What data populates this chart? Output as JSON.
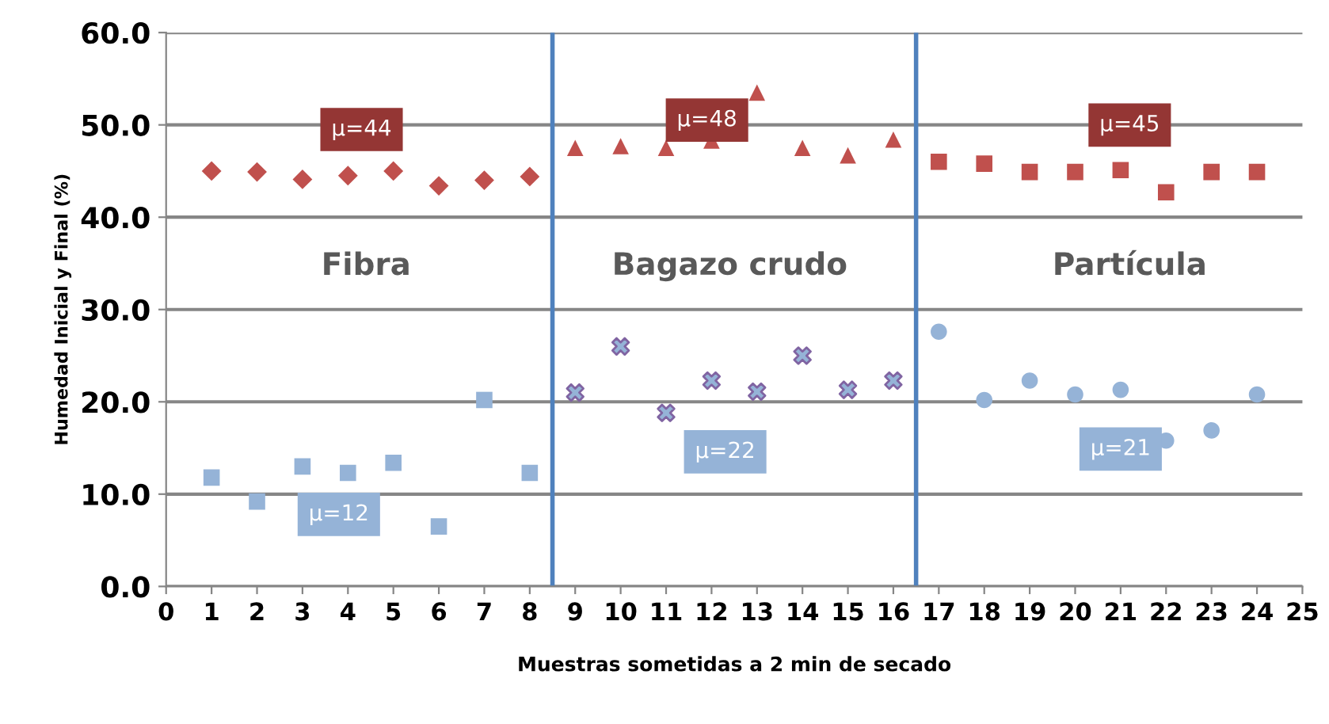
{
  "chart_data": {
    "type": "scatter",
    "xlabel": "Muestras sometidas a 2 min de secado",
    "ylabel": "Humedad Inicial y Final (%)",
    "xlim": [
      0,
      25
    ],
    "xticks": [
      0,
      1,
      2,
      3,
      4,
      5,
      6,
      7,
      8,
      9,
      10,
      11,
      12,
      13,
      14,
      15,
      16,
      17,
      18,
      19,
      20,
      21,
      22,
      23,
      24,
      25
    ],
    "ylim": [
      0,
      60
    ],
    "yticks": [
      {
        "value": 0,
        "label": "0.0"
      },
      {
        "value": 10,
        "label": "10.0"
      },
      {
        "value": 20,
        "label": "20.0"
      },
      {
        "value": 30,
        "label": "30.0"
      },
      {
        "value": 40,
        "label": "40.0"
      },
      {
        "value": 50,
        "label": "50.0"
      },
      {
        "value": 60,
        "label": "60.0"
      }
    ],
    "grid": "y",
    "legend": false,
    "series": [
      {
        "x": [
          1,
          2,
          3,
          4,
          5,
          6,
          7,
          8
        ],
        "values": [
          45.0,
          44.9,
          44.1,
          44.5,
          45.0,
          43.4,
          44.0,
          44.4
        ],
        "color": "#c0504d",
        "marker": "diamond"
      },
      {
        "x": [
          1,
          2,
          3,
          4,
          5,
          6,
          7,
          8
        ],
        "values": [
          11.8,
          9.2,
          13.0,
          12.3,
          13.4,
          6.5,
          20.2,
          12.3
        ],
        "color": "#95b3d7",
        "marker": "square"
      },
      {
        "x": [
          9,
          10,
          11,
          12,
          13,
          14,
          15,
          16
        ],
        "values": [
          47.5,
          47.7,
          47.5,
          48.3,
          53.5,
          47.5,
          46.7,
          48.4
        ],
        "color": "#c0504d",
        "marker": "triangle"
      },
      {
        "x": [
          9,
          10,
          11,
          12,
          13,
          14,
          15,
          16
        ],
        "values": [
          21.0,
          26.0,
          18.8,
          22.3,
          21.1,
          25.0,
          21.3,
          22.3
        ],
        "color": "#95b3d7",
        "marker": "cross"
      },
      {
        "x": [
          17,
          18,
          19,
          20,
          21,
          22,
          23,
          24
        ],
        "values": [
          46.0,
          45.8,
          44.9,
          44.9,
          45.1,
          42.7,
          44.9,
          44.9
        ],
        "color": "#c0504d",
        "marker": "square"
      },
      {
        "x": [
          17,
          18,
          19,
          20,
          21,
          22,
          23,
          24
        ],
        "values": [
          27.6,
          20.2,
          22.3,
          20.8,
          21.3,
          15.8,
          16.9,
          20.8
        ],
        "color": "#95b3d7",
        "marker": "circle"
      }
    ],
    "ref_lines": [
      {
        "axis": "x",
        "value": 8.5,
        "color": "#4f81bd"
      },
      {
        "axis": "x",
        "value": 16.5,
        "color": "#4f81bd"
      }
    ],
    "annotations": [
      "μ=44",
      "μ=12",
      "μ=48",
      "μ=22",
      "μ=45",
      "μ=21",
      "Fibra",
      "Bagazo crudo",
      "Partícula"
    ]
  }
}
